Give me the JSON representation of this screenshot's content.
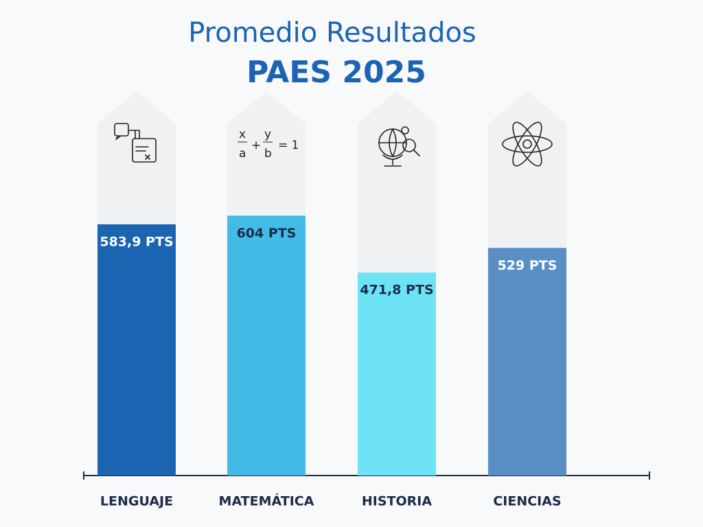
{
  "chart_data": {
    "type": "bar",
    "title": "Promedio Resultados",
    "subtitle": "PAES 2025",
    "categories": [
      "LENGUAJE",
      "MATEMÁTICA",
      "HISTORIA",
      "CIENCIAS"
    ],
    "values": [
      583.9,
      604,
      471.8,
      529
    ],
    "value_labels": [
      "583,9 PTS",
      "604 PTS",
      "471,8 PTS",
      "529 PTS"
    ],
    "colors": [
      "#1a64b2",
      "#42bce6",
      "#6de3f5",
      "#5a8fc6"
    ],
    "label_colors": [
      "#ffffff",
      "#1c2b4a",
      "#1c2b4a",
      "#ffffff"
    ],
    "ylim": [
      0,
      1000
    ]
  }
}
